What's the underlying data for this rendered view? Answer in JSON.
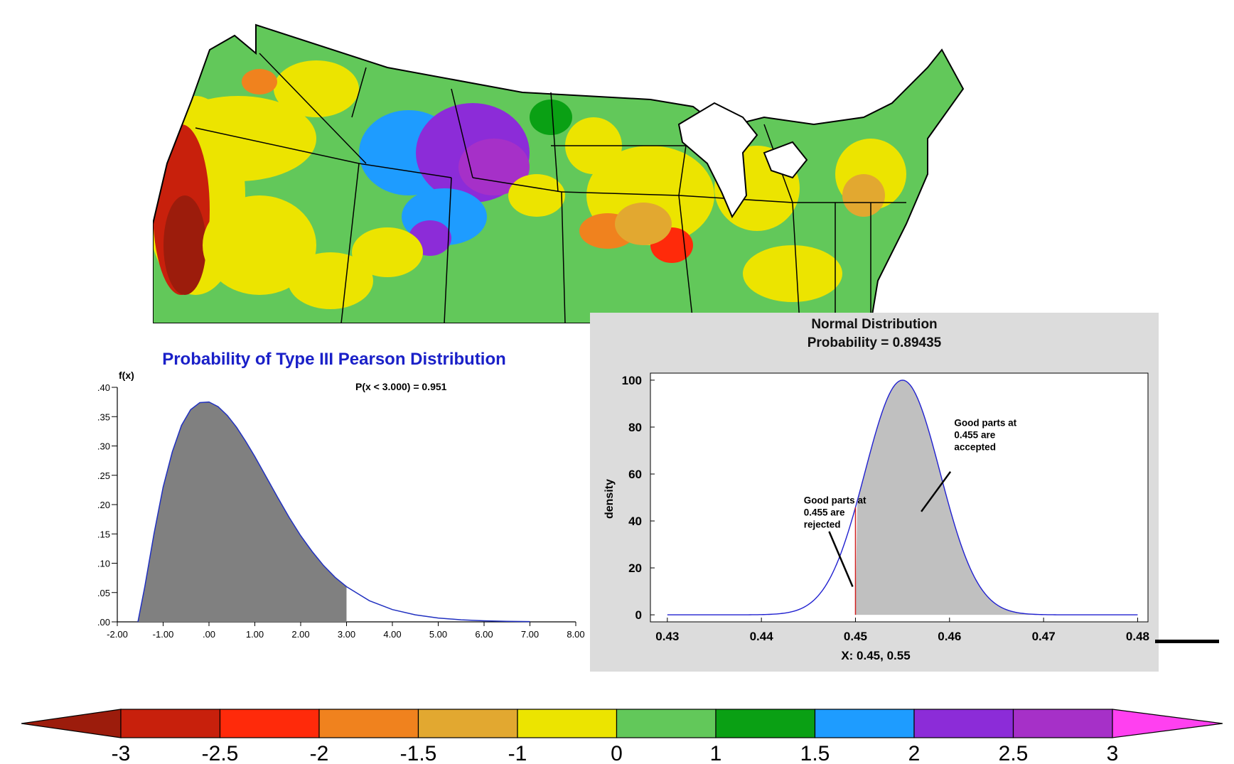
{
  "map": {
    "palette": [
      "#9c1c0c",
      "#c8200c",
      "#ff2a0a",
      "#f0821e",
      "#e2a830",
      "#ece400",
      "#62c85a",
      "#0aa014",
      "#1e9cff",
      "#8c2cd8",
      "#a630c8",
      "#ff40f0"
    ],
    "land_color": "#62c85a",
    "border_color": "#000000"
  },
  "colorbar": {
    "labels": [
      "-3",
      "-2.5",
      "-2",
      "-1.5",
      "-1",
      "0",
      "1",
      "1.5",
      "2",
      "2.5",
      "3"
    ],
    "colors": [
      "#9c1c0c",
      "#c8200c",
      "#ff2a0a",
      "#f0821e",
      "#e2a830",
      "#ece400",
      "#62c85a",
      "#0aa014",
      "#1e9cff",
      "#8c2cd8",
      "#a630c8",
      "#ff40f0"
    ]
  },
  "chart_data": [
    {
      "type": "area",
      "title": "Probability of Type III Pearson Distribution",
      "ylabel": "f(x)",
      "annotation": "P(x <  3.000) =  0.951",
      "x_ticks": [
        "-2.00",
        "-1.00",
        ".00",
        "1.00",
        "2.00",
        "3.00",
        "4.00",
        "5.00",
        "6.00",
        "7.00",
        "8.00"
      ],
      "y_ticks": [
        ".00",
        ".05",
        ".10",
        ".15",
        ".20",
        ".25",
        ".30",
        ".35",
        ".40"
      ],
      "xlim": [
        -2,
        8
      ],
      "ylim": [
        0,
        0.4
      ],
      "x": [
        -1.55,
        -1.4,
        -1.2,
        -1.0,
        -0.8,
        -0.6,
        -0.4,
        -0.2,
        0.0,
        0.2,
        0.4,
        0.6,
        0.8,
        1.0,
        1.25,
        1.5,
        1.75,
        2.0,
        2.25,
        2.5,
        2.75,
        3.0,
        3.5,
        4.0,
        4.5,
        5.0,
        5.5,
        6.0,
        6.5,
        7.0
      ],
      "y": [
        0.0,
        0.06,
        0.15,
        0.23,
        0.29,
        0.335,
        0.362,
        0.374,
        0.375,
        0.367,
        0.352,
        0.332,
        0.308,
        0.282,
        0.247,
        0.212,
        0.178,
        0.147,
        0.12,
        0.096,
        0.076,
        0.06,
        0.036,
        0.021,
        0.012,
        0.0065,
        0.0035,
        0.0018,
        0.0009,
        0.0004
      ],
      "shaded_upper": 3.0,
      "fill_color": "#808080",
      "line_color": "#2030c0"
    },
    {
      "type": "area",
      "title": "Normal Distribution",
      "subtitle": "Probability = 0.89435",
      "xlabel": "X: 0.45, 0.55",
      "ylabel": "density",
      "x_ticks": [
        "0.43",
        "0.44",
        "0.45",
        "0.46",
        "0.47",
        "0.48"
      ],
      "y_ticks": [
        "0",
        "20",
        "40",
        "60",
        "80",
        "100"
      ],
      "xlim": [
        0.43,
        0.48
      ],
      "ylim": [
        0,
        100
      ],
      "mean": 0.455,
      "sd": 0.004,
      "shaded_from": 0.45,
      "fill_color": "#c0c0c0",
      "line_color": "#2020d0",
      "marker_color": "#d02020",
      "annotations": [
        {
          "lines": [
            "Good parts at",
            "0.455 are",
            "accepted"
          ],
          "x": 0.4605,
          "y": 80.5,
          "arrow_from": [
            0.4601,
            61
          ],
          "arrow_to": [
            0.457,
            44
          ]
        },
        {
          "lines": [
            "Good parts at",
            "0.455 are",
            "rejected"
          ],
          "x": 0.4445,
          "y": 47.5,
          "arrow_from": [
            0.4472,
            35.5
          ],
          "arrow_to": [
            0.4497,
            12
          ]
        }
      ]
    }
  ]
}
